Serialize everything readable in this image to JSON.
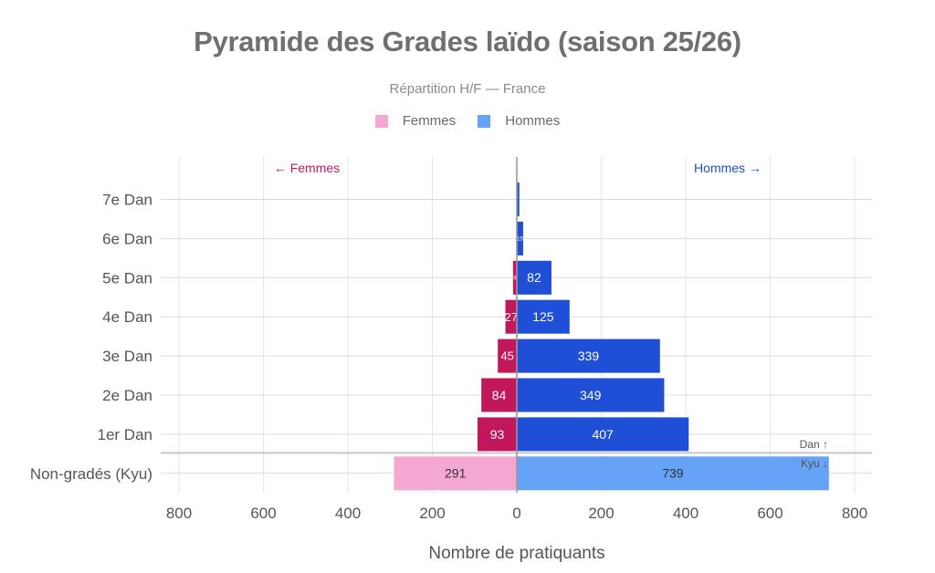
{
  "chart_data": {
    "type": "bar",
    "orientation": "horizontal",
    "layout": "population-pyramid",
    "title": "Pyramide des Grades laïdo (saison 25/26)",
    "subtitle": "Répartition H/F — France",
    "xlabel": "Nombre de pratiquants",
    "ylabel": "",
    "xlim": [
      -800,
      800
    ],
    "x_ticks": [
      -800,
      -600,
      -400,
      -200,
      0,
      200,
      400,
      600,
      800
    ],
    "x_tick_labels": [
      "800",
      "600",
      "400",
      "200",
      "0",
      "200",
      "400",
      "600",
      "800"
    ],
    "grid": true,
    "legend_position": "top-center",
    "categories": [
      "7e Dan",
      "6e Dan",
      "5e Dan",
      "4e Dan",
      "3e Dan",
      "2e Dan",
      "1er Dan",
      "Non-gradés (Kyu)"
    ],
    "series": [
      {
        "name": "Femmes",
        "values": [
          0,
          1,
          9,
          27,
          45,
          84,
          93,
          291
        ],
        "labels": [
          "",
          "",
          "9",
          "27",
          "45",
          "84",
          "93",
          "291"
        ],
        "color": "#c2185b",
        "kyu_color": "#f4a7d3"
      },
      {
        "name": "Hommes",
        "values": [
          6,
          15,
          82,
          125,
          339,
          349,
          407,
          739
        ],
        "labels": [
          "",
          "15",
          "82",
          "125",
          "339",
          "349",
          "407",
          "739"
        ],
        "color": "#1e4fd6",
        "kyu_color": "#64a3f5"
      }
    ],
    "annotations": {
      "left": "← Femmes",
      "right": "Hommes →",
      "dan_marker": "Dan ↑",
      "kyu_marker": "Kyu ↓"
    }
  }
}
